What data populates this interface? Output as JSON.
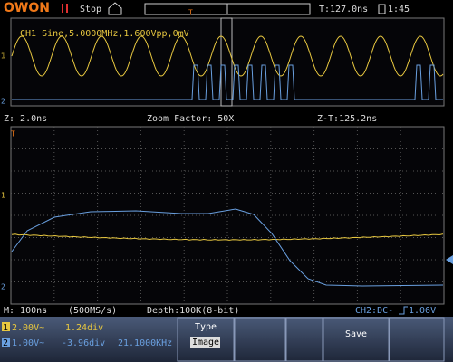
{
  "header": {
    "brand": "OWON",
    "state": "Stop",
    "time": "T:127.0ns",
    "memory": "1:45"
  },
  "zoom_panel": {
    "info": "CH1 Sine,5.0000MHz,1.600Vpp,0mV",
    "markers": {
      "trigger": "T",
      "ch1": "1",
      "ch2": "2"
    }
  },
  "zoom_bar": {
    "zoom_time": "Z: 2.0ns",
    "factor": "Zoom Factor: 50X",
    "offset": "Z-T:125.2ns"
  },
  "main_panel": {
    "markers": {
      "trigger": "T",
      "ch1": "1",
      "ch2": "2"
    }
  },
  "status": {
    "timebase": "M: 100ns",
    "rate": "(500MS/s)",
    "depth": "Depth:100K(8-bit)",
    "trigger": "CH2:DC-",
    "level": "1.06V"
  },
  "channels": [
    {
      "id": "1",
      "scale": "2.00V~",
      "position": "1.24div"
    },
    {
      "id": "2",
      "scale": "1.00V~",
      "position": "-3.96div",
      "frequency": "21.1000KHz"
    }
  ],
  "menu": {
    "type_label": "Type",
    "type_value": "Image",
    "save": "Save"
  }
}
